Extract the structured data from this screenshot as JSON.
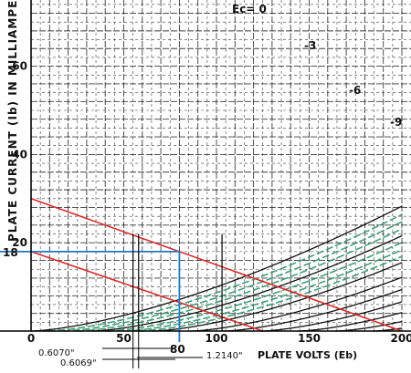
{
  "chart_data": {
    "type": "line",
    "title": "",
    "xlabel": "PLATE VOLTS (Eb)",
    "ylabel": "PLATE CURRENT (Ib) IN MILLIAMPERES",
    "xlim": [
      0,
      200
    ],
    "ylim": [
      0,
      75
    ],
    "x_ticks": [
      "0",
      "50",
      "100",
      "150",
      "200"
    ],
    "y_ticks": [
      "20",
      "40",
      "60"
    ],
    "grid": true,
    "colors": {
      "grid": "#1a1a1a",
      "family": "#111111",
      "interpolated": "#3f9e78",
      "load_line": "#d92b2b",
      "marker": "#1f78c4"
    },
    "series": [
      {
        "name": "Ec = 0",
        "kind": "family",
        "x0": 0,
        "k": 0.01,
        "n": 1.5
      },
      {
        "name": "",
        "kind": "interpolated",
        "x0": 9,
        "k": 0.01,
        "n": 1.5
      },
      {
        "name": "",
        "kind": "interpolated",
        "x0": 17,
        "k": 0.01,
        "n": 1.5
      },
      {
        "name": "",
        "kind": "interpolated",
        "x0": 25,
        "k": 0.01,
        "n": 1.5
      },
      {
        "name": "-3",
        "kind": "family",
        "x0": 33,
        "k": 0.01,
        "n": 1.5
      },
      {
        "name": "",
        "kind": "interpolated",
        "x0": 41,
        "k": 0.01,
        "n": 1.5
      },
      {
        "name": "",
        "kind": "interpolated",
        "x0": 50,
        "k": 0.01,
        "n": 1.5
      },
      {
        "name": "",
        "kind": "interpolated",
        "x0": 58,
        "k": 0.01,
        "n": 1.5
      },
      {
        "name": "-6",
        "kind": "family",
        "x0": 66,
        "k": 0.01,
        "n": 1.5
      },
      {
        "name": "",
        "kind": "family",
        "x0": 86,
        "k": 0.01,
        "n": 1.5
      },
      {
        "name": "-9",
        "kind": "family",
        "x0": 104,
        "k": 0.01,
        "n": 1.5
      },
      {
        "name": "",
        "kind": "family",
        "x0": 124,
        "k": 0.01,
        "n": 1.5
      },
      {
        "name": "",
        "kind": "family",
        "x0": 144,
        "k": 0.01,
        "n": 1.5
      },
      {
        "name": "",
        "kind": "family",
        "x0": 164,
        "k": 0.01,
        "n": 1.5
      },
      {
        "name": "",
        "kind": "family",
        "x0": 184,
        "k": 0.01,
        "n": 1.5
      }
    ],
    "load_lines": [
      {
        "x": [
          0,
          200
        ],
        "y": [
          30,
          0
        ]
      },
      {
        "x": [
          0,
          125
        ],
        "y": [
          18,
          0
        ]
      }
    ],
    "operating_point": {
      "x": 80,
      "y": 18
    },
    "verticals": [
      55,
      58,
      103
    ]
  },
  "labels": {
    "ec0": "Ec= 0",
    "minus3": "-3",
    "minus6": "-6",
    "minus9": "-9",
    "y18": "18",
    "x80": "80",
    "note1": "0.6070\"",
    "note2": "0.6069\"",
    "note3": "1.2140\""
  }
}
